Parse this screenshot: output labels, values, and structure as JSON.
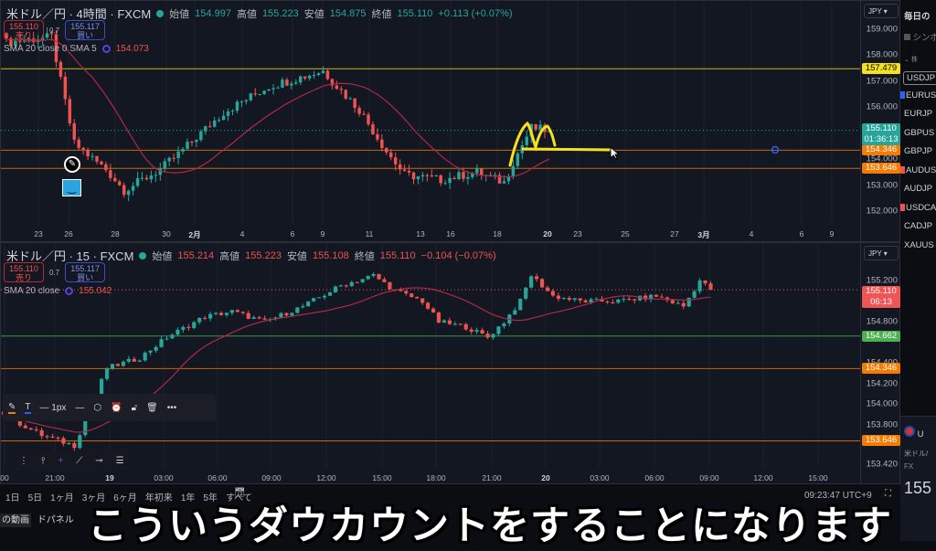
{
  "colors": {
    "up": "#26a69a",
    "down": "#ef5350",
    "sma": "#b0284a",
    "yellow": "#f5e11d",
    "orange": "#f57c00",
    "green": "#4caf50"
  },
  "top": {
    "symbol": "米ドル／円 · 4時間 · FXCM",
    "open_label": "始値",
    "open": "154.997",
    "high_label": "高値",
    "high": "155.223",
    "low_label": "安値",
    "low": "154.875",
    "close_label": "終値",
    "close": "155.110",
    "change": "+0.113 (+0.07%)",
    "sell_price": "155.110",
    "sell_label": "売り",
    "spread": "0.7",
    "buy_price": "155.117",
    "buy_label": "買い",
    "sma_label": "SMA 20 close 0 SMA 5",
    "sma_value": "154.073",
    "currency": "JPY",
    "price_ticks": [
      "159.000",
      "158.000",
      "157.000",
      "156.000",
      "154.000",
      "153.000",
      "152.000"
    ],
    "last_price": "155.110",
    "countdown": "01:36:13",
    "levels": [
      {
        "value": "157.479",
        "color": "#f5e11d"
      },
      {
        "value": "154.346",
        "color": "#f57c00"
      },
      {
        "value": "153.646",
        "color": "#f57c00"
      }
    ],
    "time_labels": [
      "23",
      "26",
      "28",
      "30",
      "2月",
      "4",
      "6",
      "9",
      "11",
      "13",
      "16",
      "18",
      "20",
      "23",
      "25",
      "27",
      "3月",
      "4",
      "6",
      "9"
    ],
    "path": [
      [
        0,
        158.5
      ],
      [
        10,
        158.7
      ],
      [
        12,
        157.0
      ],
      [
        15,
        154.6
      ],
      [
        22,
        153.6
      ],
      [
        26,
        152.8
      ],
      [
        34,
        153.6
      ],
      [
        38,
        154.2
      ],
      [
        48,
        155.8
      ],
      [
        58,
        156.8
      ],
      [
        70,
        157.4
      ],
      [
        72,
        157.0
      ],
      [
        78,
        155.9
      ],
      [
        84,
        154.3
      ],
      [
        88,
        153.4
      ],
      [
        96,
        153.2
      ],
      [
        104,
        153.5
      ],
      [
        110,
        153.1
      ],
      [
        112,
        153.9
      ],
      [
        116,
        155.2
      ],
      [
        120,
        155.1
      ]
    ]
  },
  "bottom": {
    "symbol": "米ドル／円 · 15 · FXCM",
    "open_label": "始値",
    "open": "155.214",
    "high_label": "高値",
    "high": "155.223",
    "low_label": "安値",
    "low": "155.108",
    "close_label": "終値",
    "close": "155.110",
    "change": "−0.104 (−0.07%)",
    "sell_price": "155.110",
    "sell_label": "売り",
    "spread": "0.7",
    "buy_price": "155.117",
    "buy_label": "買い",
    "sma_label": "SMA 20 close",
    "sma_value": "155.042",
    "currency": "JPY",
    "price_ticks": [
      "155.200",
      "154.800",
      "154.400",
      "154.200",
      "154.000",
      "153.800",
      "153.420"
    ],
    "last_price": "155.110",
    "countdown": "06:13",
    "levels": [
      {
        "value": "154.662",
        "color": "#4caf50"
      },
      {
        "value": "154.346",
        "color": "#f57c00"
      },
      {
        "value": "153.646",
        "color": "#f57c00"
      }
    ],
    "time_labels": [
      "00",
      "21:00",
      "19",
      "03:00",
      "06:00",
      "09:00",
      "12:00",
      "15:00",
      "18:00",
      "21:00",
      "20",
      "03:00",
      "06:00",
      "09:00",
      "12:00",
      "15:00"
    ],
    "path": [
      [
        0,
        153.9
      ],
      [
        7,
        153.7
      ],
      [
        13,
        153.6
      ],
      [
        17,
        154.1
      ],
      [
        19,
        154.35
      ],
      [
        25,
        154.45
      ],
      [
        30,
        154.65
      ],
      [
        37,
        154.85
      ],
      [
        42,
        154.9
      ],
      [
        48,
        154.8
      ],
      [
        55,
        154.95
      ],
      [
        62,
        155.15
      ],
      [
        68,
        155.25
      ],
      [
        72,
        155.1
      ],
      [
        77,
        155.0
      ],
      [
        80,
        154.8
      ],
      [
        85,
        154.75
      ],
      [
        89,
        154.65
      ],
      [
        92,
        154.8
      ],
      [
        95,
        155.0
      ],
      [
        97,
        155.25
      ],
      [
        101,
        155.05
      ],
      [
        106,
        155.0
      ],
      [
        113,
        155.0
      ],
      [
        120,
        155.05
      ],
      [
        125,
        154.95
      ],
      [
        128,
        155.2
      ],
      [
        130,
        155.11
      ]
    ]
  },
  "drawing_toolbar": {
    "width_label": "1px"
  },
  "range_bar": {
    "ranges": [
      "1日",
      "5日",
      "1ヶ月",
      "3ヶ月",
      "6ヶ月",
      "年初来",
      "1年",
      "5年",
      "すべて"
    ],
    "clock": "09:23:47 UTC+9"
  },
  "sidebar": {
    "title": "毎日の",
    "symbol_header": "シンボ",
    "group": "株",
    "items": [
      "USDJP",
      "EURUS",
      "EURJP",
      "GBPUS",
      "GBPJP",
      "AUDUS",
      "AUDJP",
      "USDCA",
      "CADJP",
      "XAUUS"
    ],
    "detail": {
      "symbol": "U",
      "name": "米ドル/",
      "type": "FX",
      "price": "155"
    }
  },
  "bottom_left": {
    "video": "の動画",
    "panel": "ドパネル"
  },
  "subtitle": "こういうダウカウントをすることになります"
}
